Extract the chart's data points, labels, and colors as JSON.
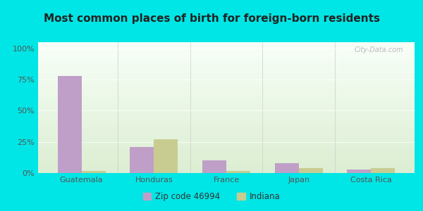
{
  "title": "Most common places of birth for foreign-born residents",
  "categories": [
    "Guatemala",
    "Honduras",
    "France",
    "Japan",
    "Costa Rica"
  ],
  "zip_values": [
    0.78,
    0.21,
    0.1,
    0.08,
    0.03
  ],
  "indiana_values": [
    0.015,
    0.27,
    0.015,
    0.04,
    0.04
  ],
  "zip_color": "#bf9fc8",
  "indiana_color": "#c8cc90",
  "background_outer": "#00e5e5",
  "background_inner_top": "#f0f8f0",
  "background_inner_bottom": "#e0f0d0",
  "title_fontsize": 11,
  "tick_label_color": "#555555",
  "legend_zip_label": "Zip code 46994",
  "legend_indiana_label": "Indiana",
  "ylim": [
    0,
    1.05
  ],
  "yticks": [
    0,
    0.25,
    0.5,
    0.75,
    1.0
  ],
  "ytick_labels": [
    "0%",
    "25%",
    "50%",
    "75%",
    "100%"
  ]
}
